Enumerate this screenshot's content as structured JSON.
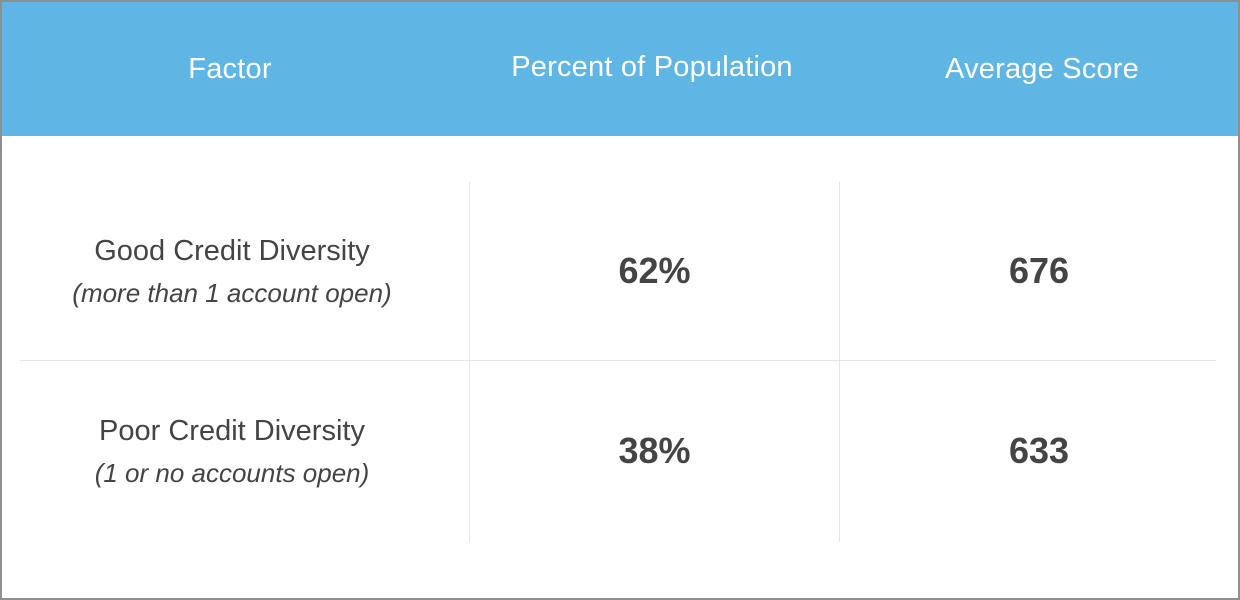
{
  "chart_data": {
    "type": "table",
    "columns": [
      "Factor",
      "Percent of Population",
      "Average Score"
    ],
    "rows": [
      {
        "factor": "Good Credit Diversity",
        "note": "(more than 1 account open)",
        "percent": "62%",
        "score": "676"
      },
      {
        "factor": "Poor Credit Diversity",
        "note": "(1 or no accounts open)",
        "percent": "38%",
        "score": "633"
      }
    ],
    "values": {
      "percent_of_population": [
        62,
        38
      ],
      "average_score": [
        676,
        633
      ]
    },
    "colors": {
      "header_background": "#5fb6e4",
      "header_text": "#ffffff",
      "body_text": "#444444",
      "grid_lines": "#e6e6e6",
      "border": "#8f8f8f"
    }
  }
}
